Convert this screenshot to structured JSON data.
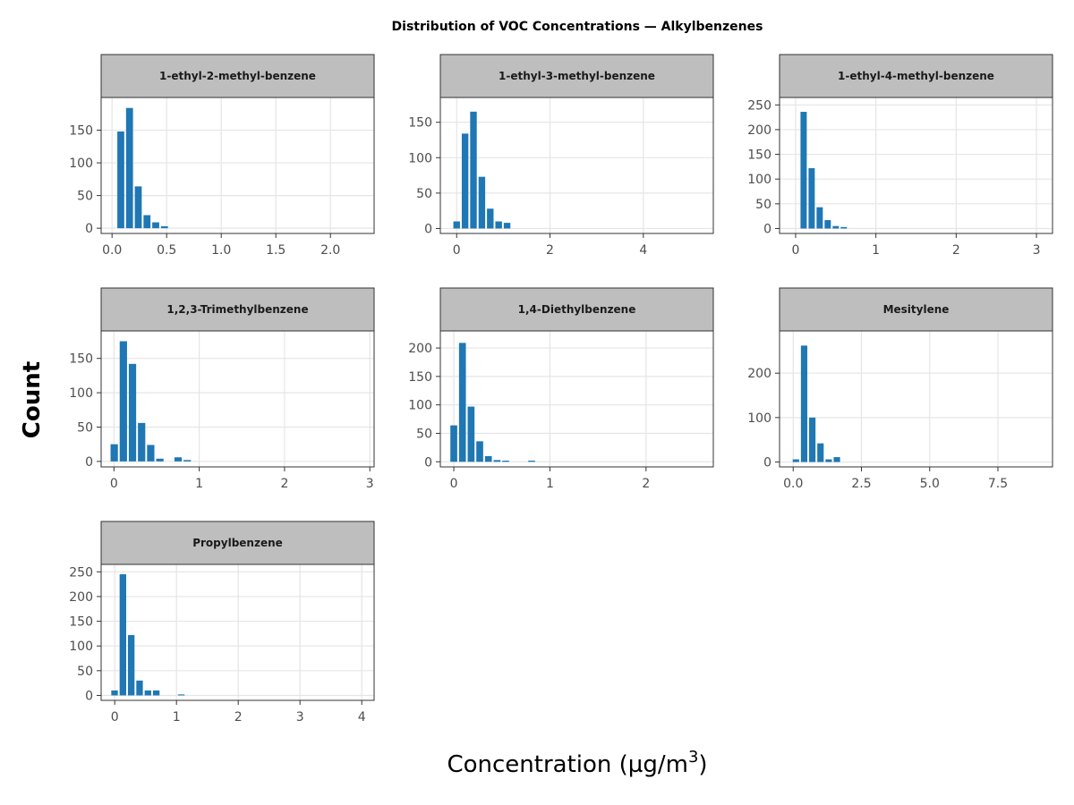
{
  "title": "Distribution of VOC Concentrations — Alkylbenzenes",
  "colors": {
    "bar": "#1f77b4",
    "strip_fill": "#bebebe",
    "grid": "#e5e5e5",
    "panel_border": "#333333"
  },
  "chart_data": {
    "type": "bar",
    "title": "Distribution of VOC Concentrations — Alkylbenzenes",
    "xlabel": "Concentration (µg/m³)",
    "xlabel_base": "Concentration (µg/m",
    "xlabel_sup": "3",
    "xlabel_close": ")",
    "ylabel": "Count",
    "grid": true,
    "facets": [
      {
        "name": "1-ethyl-2-methyl-benzene",
        "xlim": [
          -0.1,
          2.4
        ],
        "ylim": [
          -8,
          200
        ],
        "xticks": [
          0,
          0.5,
          1,
          1.5,
          2
        ],
        "xtick_labels": [
          "0.0",
          "0.5",
          "1.0",
          "1.5",
          "2.0"
        ],
        "yticks": [
          0,
          50,
          100,
          150
        ],
        "ytick_labels": [
          "0",
          "50",
          "100",
          "150"
        ],
        "bin_width": 0.08,
        "bin_starts": [
          0.04,
          0.12,
          0.2,
          0.28,
          0.36,
          0.44
        ],
        "counts": [
          148,
          184,
          64,
          20,
          9,
          3
        ]
      },
      {
        "name": "1-ethyl-3-methyl-benzene",
        "xlim": [
          -0.35,
          5.5
        ],
        "ylim": [
          -7,
          185
        ],
        "xticks": [
          0,
          2,
          4
        ],
        "xtick_labels": [
          "0",
          "2",
          "4"
        ],
        "yticks": [
          0,
          50,
          100,
          150
        ],
        "ytick_labels": [
          "0",
          "50",
          "100",
          "150"
        ],
        "bin_width": 0.18,
        "bin_starts": [
          -0.09,
          0.09,
          0.27,
          0.45,
          0.63,
          0.81,
          0.99
        ],
        "counts": [
          10,
          134,
          165,
          73,
          28,
          10,
          8
        ]
      },
      {
        "name": "1-ethyl-4-methyl-benzene",
        "xlim": [
          -0.2,
          3.2
        ],
        "ylim": [
          -10,
          265
        ],
        "xticks": [
          0,
          1,
          2,
          3
        ],
        "xtick_labels": [
          "0",
          "1",
          "2",
          "3"
        ],
        "yticks": [
          0,
          50,
          100,
          150,
          200,
          250
        ],
        "ytick_labels": [
          "0",
          "50",
          "100",
          "150",
          "200",
          "250"
        ],
        "bin_width": 0.1,
        "bin_starts": [
          0.05,
          0.15,
          0.25,
          0.35,
          0.45,
          0.55
        ],
        "counts": [
          236,
          122,
          43,
          17,
          5,
          3
        ]
      },
      {
        "name": "1,2,3-Trimethylbenzene",
        "xlim": [
          -0.15,
          3.05
        ],
        "ylim": [
          -8,
          190
        ],
        "xticks": [
          0,
          1,
          2,
          3
        ],
        "xtick_labels": [
          "0",
          "1",
          "2",
          "3"
        ],
        "yticks": [
          0,
          50,
          100,
          150
        ],
        "ytick_labels": [
          "0",
          "50",
          "100",
          "150"
        ],
        "bin_width": 0.107,
        "bin_starts": [
          -0.05,
          0.057,
          0.164,
          0.271,
          0.378,
          0.485,
          0.592,
          0.699,
          0.806
        ],
        "counts": [
          25,
          175,
          142,
          56,
          24,
          4,
          0,
          6,
          2
        ]
      },
      {
        "name": "1,4-Diethylbenzene",
        "xlim": [
          -0.14,
          2.7
        ],
        "ylim": [
          -9,
          230
        ],
        "xticks": [
          0,
          1,
          2
        ],
        "xtick_labels": [
          "0",
          "1",
          "2"
        ],
        "yticks": [
          0,
          50,
          100,
          150,
          200
        ],
        "ytick_labels": [
          "0",
          "50",
          "100",
          "150",
          "200"
        ],
        "bin_width": 0.09,
        "bin_starts": [
          -0.045,
          0.045,
          0.135,
          0.225,
          0.315,
          0.405,
          0.495,
          0.765
        ],
        "counts": [
          64,
          209,
          97,
          36,
          10,
          3,
          2,
          2
        ]
      },
      {
        "name": "Mesitylene",
        "xlim": [
          -0.5,
          9.5
        ],
        "ylim": [
          -11,
          295
        ],
        "xticks": [
          0,
          2.5,
          5,
          7.5
        ],
        "xtick_labels": [
          "0.0",
          "2.5",
          "5.0",
          "7.5"
        ],
        "yticks": [
          0,
          100,
          200
        ],
        "ytick_labels": [
          "0",
          "100",
          "200"
        ],
        "bin_width": 0.3,
        "bin_starts": [
          -0.05,
          0.25,
          0.55,
          0.85,
          1.15,
          1.45
        ],
        "counts": [
          6,
          262,
          100,
          42,
          6,
          11
        ]
      },
      {
        "name": "Propylbenzene",
        "xlim": [
          -0.22,
          4.2
        ],
        "ylim": [
          -10,
          265
        ],
        "xticks": [
          0,
          1,
          2,
          3,
          4
        ],
        "xtick_labels": [
          "0",
          "1",
          "2",
          "3",
          "4"
        ],
        "yticks": [
          0,
          50,
          100,
          150,
          200,
          250
        ],
        "ytick_labels": [
          "0",
          "50",
          "100",
          "150",
          "200",
          "250"
        ],
        "bin_width": 0.135,
        "bin_starts": [
          -0.07,
          0.065,
          0.2,
          0.335,
          0.47,
          0.605,
          0.74,
          0.875,
          1.01
        ],
        "counts": [
          10,
          245,
          122,
          30,
          10,
          10,
          0,
          0,
          2
        ]
      }
    ]
  }
}
